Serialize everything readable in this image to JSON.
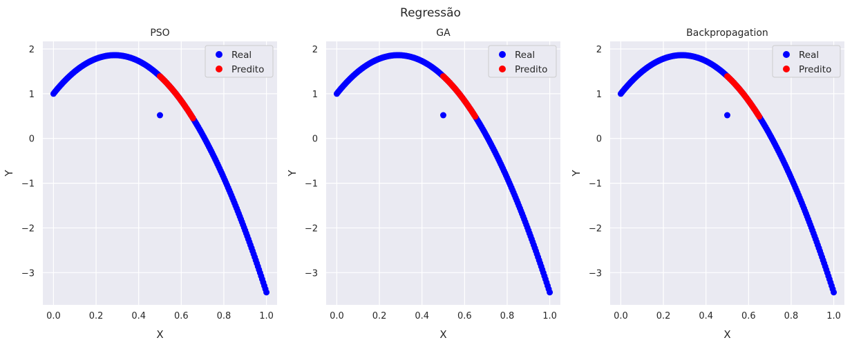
{
  "figure": {
    "suptitle": "Regressão"
  },
  "colors": {
    "real": "#0000ff",
    "predito": "#ff0000",
    "axes_bg": "#eaeaf2",
    "grid": "#ffffff",
    "text": "#262626"
  },
  "chart_data": [
    {
      "type": "scatter",
      "title": "PSO",
      "xlabel": "X",
      "ylabel": "Y",
      "xlim": [
        -0.05,
        1.05
      ],
      "ylim": [
        -3.72,
        2.17
      ],
      "xticks": [
        "0.0",
        "0.2",
        "0.4",
        "0.6",
        "0.8",
        "1.0"
      ],
      "yticks": [
        "−3",
        "−2",
        "−1",
        "0",
        "1",
        "2"
      ],
      "grid": true,
      "legend_position": "top-right",
      "series": [
        {
          "name": "Real",
          "color": "#0000ff",
          "curve": "y = 1 + 6x - 10.44x^2",
          "x_range": [
            0.0,
            1.0
          ],
          "x_step": 0.005,
          "extra_points": [
            [
              0.5,
              0.52
            ]
          ]
        },
        {
          "name": "Predito",
          "color": "#ff0000",
          "curve": "y = 1 + 6x - 10.44x^2",
          "x_range": [
            0.5,
            0.655
          ],
          "x_step": 0.005
        }
      ]
    },
    {
      "type": "scatter",
      "title": "GA",
      "xlabel": "X",
      "ylabel": "Y",
      "xlim": [
        -0.05,
        1.05
      ],
      "ylim": [
        -3.72,
        2.17
      ],
      "xticks": [
        "0.0",
        "0.2",
        "0.4",
        "0.6",
        "0.8",
        "1.0"
      ],
      "yticks": [
        "−3",
        "−2",
        "−1",
        "0",
        "1",
        "2"
      ],
      "grid": true,
      "legend_position": "top-right",
      "series": [
        {
          "name": "Real",
          "color": "#0000ff",
          "curve": "y = 1 + 6x - 10.44x^2",
          "x_range": [
            0.0,
            1.0
          ],
          "x_step": 0.005,
          "extra_points": [
            [
              0.5,
              0.52
            ]
          ]
        },
        {
          "name": "Predito",
          "color": "#ff0000",
          "curve": "y = 1 + 6x - 10.44x^2",
          "x_range": [
            0.5,
            0.65
          ],
          "x_step": 0.005
        }
      ]
    },
    {
      "type": "scatter",
      "title": "Backpropagation",
      "xlabel": "X",
      "ylabel": "Y",
      "xlim": [
        -0.05,
        1.05
      ],
      "ylim": [
        -3.72,
        2.17
      ],
      "xticks": [
        "0.0",
        "0.2",
        "0.4",
        "0.6",
        "0.8",
        "1.0"
      ],
      "yticks": [
        "−3",
        "−2",
        "−1",
        "0",
        "1",
        "2"
      ],
      "grid": true,
      "legend_position": "top-right",
      "series": [
        {
          "name": "Real",
          "color": "#0000ff",
          "curve": "y = 1 + 6x - 10.44x^2",
          "x_range": [
            0.0,
            1.0
          ],
          "x_step": 0.005,
          "extra_points": [
            [
              0.5,
              0.52
            ]
          ]
        },
        {
          "name": "Predito",
          "color": "#ff0000",
          "curve": "y = 1 + 6x - 10.44x^2",
          "x_range": [
            0.5,
            0.65
          ],
          "x_step": 0.005
        }
      ]
    }
  ]
}
